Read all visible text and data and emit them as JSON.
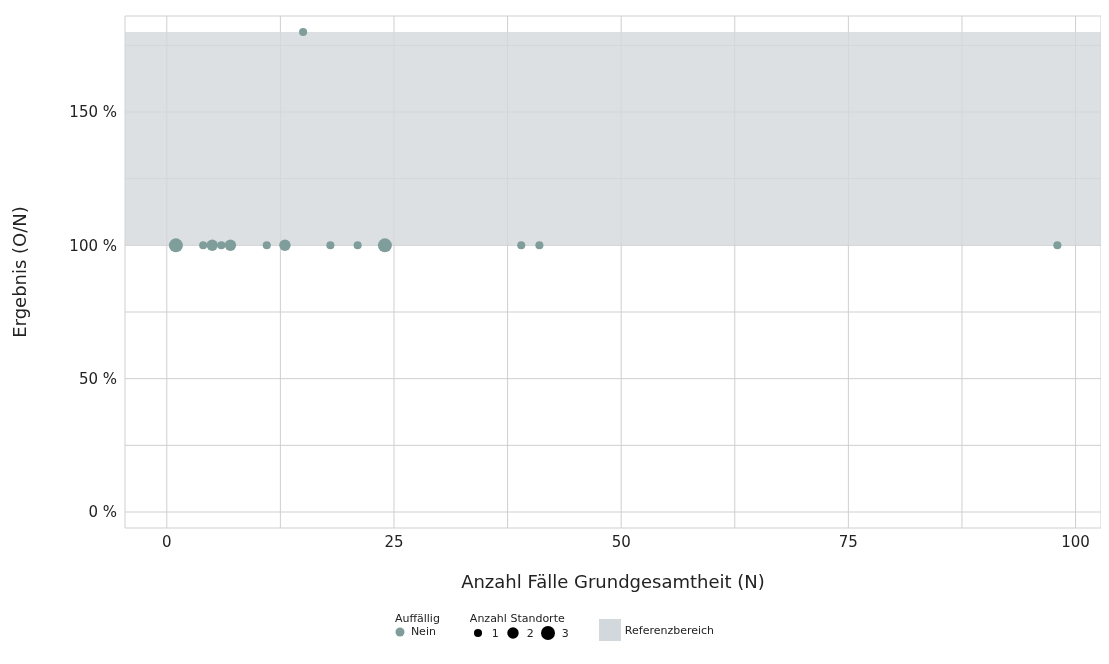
{
  "chart_data": {
    "type": "bubble",
    "xlabel": "Anzahl Fälle Grundgesamtheit (N)",
    "ylabel": "Ergebnis (O/N)",
    "legend_title": "Auffällig",
    "annotations": [
      "Anzahl Standorte"
    ],
    "series": [
      {
        "name": "Nein",
        "color": "#7f9e9b",
        "x": [
          1,
          4,
          5,
          6,
          7,
          11,
          13,
          15,
          18,
          21,
          24,
          39,
          41,
          98
        ],
        "values": [
          100,
          100,
          100,
          100,
          100,
          100,
          100,
          180,
          100,
          100,
          100,
          100,
          100,
          100
        ],
        "sizes": [
          3,
          1,
          2,
          1,
          2,
          1,
          2,
          1,
          1,
          1,
          3,
          1,
          1,
          1
        ]
      }
    ],
    "size_legend": [
      1,
      2,
      3
    ],
    "xlim": [
      -4.6,
      102.8
    ],
    "ylim": [
      -6,
      186
    ],
    "xticks": [
      0,
      {
        "value": 12.5,
        "label": null
      },
      25,
      {
        "value": 37.5,
        "label": null
      },
      50,
      {
        "value": 62.5,
        "label": null
      },
      75,
      {
        "value": 87.5,
        "label": null
      },
      100
    ],
    "yticks": [
      {
        "value": 0,
        "label": "0 %"
      },
      {
        "value": 25,
        "label": null
      },
      {
        "value": 50,
        "label": "50 %"
      },
      {
        "value": 75,
        "label": null
      },
      {
        "value": 100,
        "label": "100 %"
      },
      {
        "value": 125,
        "label": null
      },
      {
        "value": 150,
        "label": "150 %"
      },
      {
        "value": 175,
        "label": null
      }
    ],
    "bands": [
      {
        "axis": "y",
        "from": 100,
        "to": 180,
        "label": "Referenzbereich",
        "color": "#d3d8dc"
      }
    ],
    "grid": true,
    "legend": "bottom",
    "marker": "circle"
  }
}
